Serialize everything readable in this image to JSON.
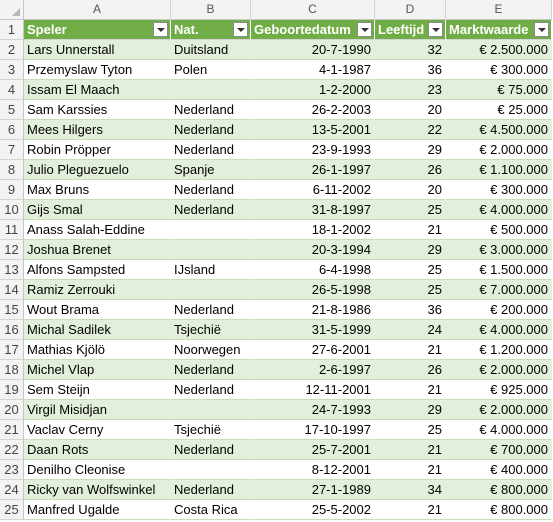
{
  "columns": [
    "A",
    "B",
    "C",
    "D",
    "E"
  ],
  "headers": [
    "Speler",
    "Nat.",
    "Geboortedatum",
    "Leeftijd",
    "Marktwaarde"
  ],
  "rows": [
    {
      "n": "2",
      "speler": "Lars Unnerstall",
      "nat": "Duitsland",
      "geb": "20-7-1990",
      "lft": "32",
      "mw": "€ 2.500.000"
    },
    {
      "n": "3",
      "speler": "Przemyslaw Tyton",
      "nat": "Polen",
      "geb": "4-1-1987",
      "lft": "36",
      "mw": "€ 300.000"
    },
    {
      "n": "4",
      "speler": "Issam El Maach",
      "nat": "",
      "geb": "1-2-2000",
      "lft": "23",
      "mw": "€ 75.000"
    },
    {
      "n": "5",
      "speler": "Sam Karssies",
      "nat": "Nederland",
      "geb": "26-2-2003",
      "lft": "20",
      "mw": "€ 25.000"
    },
    {
      "n": "6",
      "speler": "Mees Hilgers",
      "nat": "Nederland",
      "geb": "13-5-2001",
      "lft": "22",
      "mw": "€ 4.500.000"
    },
    {
      "n": "7",
      "speler": "Robin Pröpper",
      "nat": "Nederland",
      "geb": "23-9-1993",
      "lft": "29",
      "mw": "€ 2.000.000"
    },
    {
      "n": "8",
      "speler": "Julio Pleguezuelo",
      "nat": "Spanje",
      "geb": "26-1-1997",
      "lft": "26",
      "mw": "€ 1.100.000"
    },
    {
      "n": "9",
      "speler": "Max Bruns",
      "nat": "Nederland",
      "geb": "6-11-2002",
      "lft": "20",
      "mw": "€ 300.000"
    },
    {
      "n": "10",
      "speler": "Gijs Smal",
      "nat": "Nederland",
      "geb": "31-8-1997",
      "lft": "25",
      "mw": "€ 4.000.000"
    },
    {
      "n": "11",
      "speler": "Anass Salah-Eddine",
      "nat": "",
      "geb": "18-1-2002",
      "lft": "21",
      "mw": "€ 500.000"
    },
    {
      "n": "12",
      "speler": "Joshua Brenet",
      "nat": "",
      "geb": "20-3-1994",
      "lft": "29",
      "mw": "€ 3.000.000"
    },
    {
      "n": "13",
      "speler": "Alfons Sampsted",
      "nat": "IJsland",
      "geb": "6-4-1998",
      "lft": "25",
      "mw": "€ 1.500.000"
    },
    {
      "n": "14",
      "speler": "Ramiz Zerrouki",
      "nat": "",
      "geb": "26-5-1998",
      "lft": "25",
      "mw": "€ 7.000.000"
    },
    {
      "n": "15",
      "speler": "Wout Brama",
      "nat": "Nederland",
      "geb": "21-8-1986",
      "lft": "36",
      "mw": "€ 200.000"
    },
    {
      "n": "16",
      "speler": "Michal Sadilek",
      "nat": "Tsjechië",
      "geb": "31-5-1999",
      "lft": "24",
      "mw": "€ 4.000.000"
    },
    {
      "n": "17",
      "speler": "Mathias Kjölö",
      "nat": "Noorwegen",
      "geb": "27-6-2001",
      "lft": "21",
      "mw": "€ 1.200.000"
    },
    {
      "n": "18",
      "speler": "Michel Vlap",
      "nat": "Nederland",
      "geb": "2-6-1997",
      "lft": "26",
      "mw": "€ 2.000.000"
    },
    {
      "n": "19",
      "speler": "Sem Steijn",
      "nat": "Nederland",
      "geb": "12-11-2001",
      "lft": "21",
      "mw": "€ 925.000"
    },
    {
      "n": "20",
      "speler": "Virgil Misidjan",
      "nat": "",
      "geb": "24-7-1993",
      "lft": "29",
      "mw": "€ 2.000.000"
    },
    {
      "n": "21",
      "speler": "Vaclav Cerny",
      "nat": "Tsjechië",
      "geb": "17-10-1997",
      "lft": "25",
      "mw": "€ 4.000.000"
    },
    {
      "n": "22",
      "speler": "Daan Rots",
      "nat": "Nederland",
      "geb": "25-7-2001",
      "lft": "21",
      "mw": "€ 700.000"
    },
    {
      "n": "23",
      "speler": "Denilho Cleonise",
      "nat": "",
      "geb": "8-12-2001",
      "lft": "21",
      "mw": "€ 400.000"
    },
    {
      "n": "24",
      "speler": "Ricky van Wolfswinkel",
      "nat": "Nederland",
      "geb": "27-1-1989",
      "lft": "34",
      "mw": "€ 800.000"
    },
    {
      "n": "25",
      "speler": "Manfred Ugalde",
      "nat": "Costa Rica",
      "geb": "25-5-2002",
      "lft": "21",
      "mw": "€ 800.000"
    }
  ],
  "header_row_number": "1",
  "colors": {
    "header_bg": "#70ad47",
    "band_bg": "#e2efda",
    "header_text": "#ffffff"
  }
}
